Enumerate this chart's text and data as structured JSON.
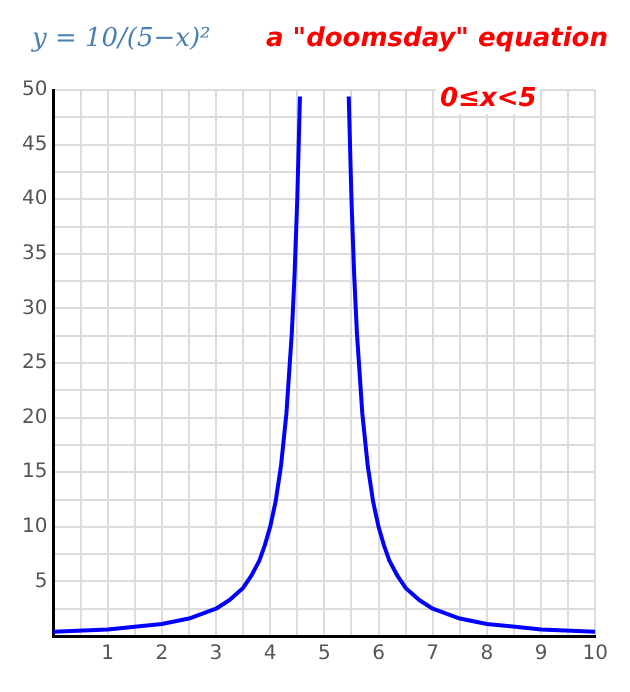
{
  "chart_data": {
    "type": "line",
    "annotations": [
      "y = 10/(5−x)²",
      "a \"doomsday\" equation",
      "0≤x<5"
    ],
    "series": [
      {
        "color": "#0000ff",
        "x": [
          0,
          1,
          2,
          2.5,
          3,
          3.25,
          3.5,
          3.65,
          3.8,
          3.9,
          4,
          4.1,
          4.2,
          4.3,
          4.4,
          4.45,
          4.5,
          4.55,
          5,
          5.45,
          5.5,
          5.55,
          5.6,
          5.7,
          5.8,
          5.9,
          6,
          6.1,
          6.2,
          6.35,
          6.5,
          6.75,
          7,
          7.5,
          8,
          9,
          10
        ],
        "values": [
          0.4,
          0.6,
          1.1,
          1.6,
          2.5,
          3.3,
          4.4,
          5.5,
          6.9,
          8.3,
          10,
          12.3,
          15.6,
          20.4,
          27.8,
          33.1,
          40,
          49.4,
          null,
          49.4,
          40,
          33.1,
          27.8,
          20.4,
          15.6,
          12.3,
          10,
          8.3,
          6.9,
          5.5,
          4.4,
          3.3,
          2.5,
          1.6,
          1.1,
          0.6,
          0.4
        ]
      }
    ],
    "xlim": [
      0,
      10
    ],
    "xticks": [
      {
        "value": 0,
        "label": null
      },
      {
        "value": 0.5,
        "label": null
      },
      1,
      {
        "value": 1.5,
        "label": null
      },
      2,
      {
        "value": 2.5,
        "label": null
      },
      3,
      {
        "value": 3.5,
        "label": null
      },
      4,
      {
        "value": 4.5,
        "label": null
      },
      5,
      {
        "value": 5.5,
        "label": null
      },
      6,
      {
        "value": 6.5,
        "label": null
      },
      7,
      {
        "value": 7.5,
        "label": null
      },
      8,
      {
        "value": 8.5,
        "label": null
      },
      9,
      {
        "value": 9.5,
        "label": null
      },
      10
    ],
    "ylim": [
      0,
      50
    ],
    "yticks": [
      {
        "value": 0,
        "label": null
      },
      {
        "value": 2.5,
        "label": null
      },
      5,
      {
        "value": 7.5,
        "label": null
      },
      10,
      {
        "value": 12.5,
        "label": null
      },
      15,
      {
        "value": 17.5,
        "label": null
      },
      20,
      {
        "value": 22.5,
        "label": null
      },
      25,
      {
        "value": 27.5,
        "label": null
      },
      30,
      {
        "value": 32.5,
        "label": null
      },
      35,
      {
        "value": 37.5,
        "label": null
      },
      40,
      {
        "value": 42.5,
        "label": null
      },
      45,
      {
        "value": 47.5,
        "label": null
      },
      50
    ],
    "grid": true,
    "legend": false,
    "marker": "none",
    "line_style": "solid"
  }
}
